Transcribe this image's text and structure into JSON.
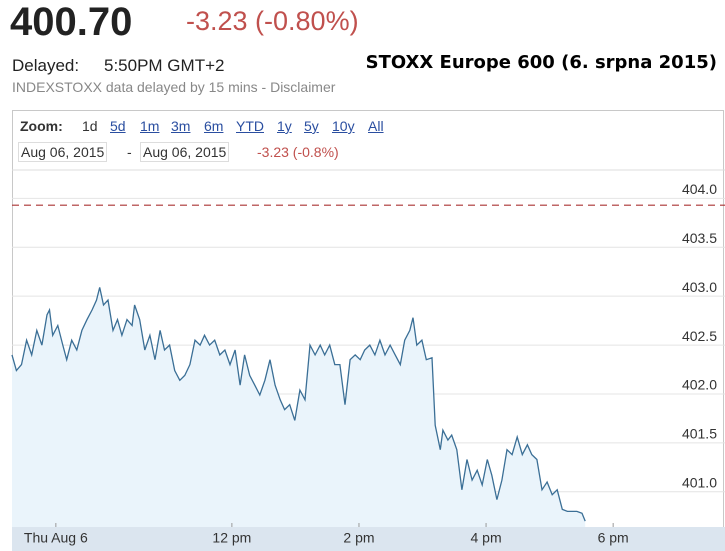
{
  "header": {
    "price": "400.70",
    "change": "-3.23 (-0.80%)",
    "delayed_label": "Delayed:",
    "time": "5:50PM GMT+2",
    "title": "STOXX Europe 600 (6. srpna 2015)",
    "disclaimer": "INDEXSTOXX data delayed by 15 mins - Disclaimer"
  },
  "zoom": {
    "label": "Zoom:",
    "options": [
      "1d",
      "5d",
      "1m",
      "3m",
      "6m",
      "YTD",
      "1y",
      "5y",
      "10y",
      "All"
    ]
  },
  "range": {
    "from": "Aug 06, 2015",
    "separator": "-",
    "to": "Aug 06, 2015",
    "change": "-3.23 (-0.8%)"
  },
  "chart_data": {
    "type": "line",
    "x": [
      8.54,
      8.61,
      8.69,
      8.77,
      8.85,
      8.93,
      9.01,
      9.09,
      9.13,
      9.18,
      9.26,
      9.34,
      9.4,
      9.48,
      9.56,
      9.64,
      9.72,
      9.8,
      9.87,
      9.92,
      9.98,
      10.05,
      10.13,
      10.2,
      10.27,
      10.35,
      10.43,
      10.47,
      10.55,
      10.63,
      10.71,
      10.79,
      10.87,
      10.94,
      11.02,
      11.1,
      11.18,
      11.26,
      11.34,
      11.42,
      11.5,
      11.57,
      11.65,
      11.73,
      11.81,
      11.89,
      11.97,
      12.05,
      12.13,
      12.2,
      12.28,
      12.36,
      12.44,
      12.52,
      12.6,
      12.68,
      12.76,
      12.83,
      12.91,
      12.99,
      13.07,
      13.15,
      13.23,
      13.31,
      13.39,
      13.46,
      13.54,
      13.62,
      13.7,
      13.78,
      13.86,
      13.94,
      14.02,
      14.09,
      14.17,
      14.25,
      14.33,
      14.41,
      14.49,
      14.57,
      14.65,
      14.72,
      14.8,
      14.85,
      14.91,
      14.99,
      15.06,
      15.15,
      15.2,
      15.28,
      15.32,
      15.4,
      15.46,
      15.54,
      15.62,
      15.7,
      15.78,
      15.86,
      15.94,
      16.02,
      16.09,
      16.17,
      16.25,
      16.33,
      16.41,
      16.49,
      16.57,
      16.65,
      16.72,
      16.8,
      16.88,
      16.96,
      17.04,
      17.12,
      17.2,
      17.28,
      17.35,
      17.43,
      17.51,
      17.56
    ],
    "series": [
      {
        "color": "#3b6f96",
        "values": [
          402.4,
          402.24,
          402.3,
          402.55,
          402.4,
          402.65,
          402.5,
          402.81,
          402.86,
          402.6,
          402.7,
          402.5,
          402.35,
          402.55,
          402.45,
          402.65,
          402.76,
          402.86,
          402.96,
          403.09,
          402.91,
          402.96,
          402.65,
          402.76,
          402.6,
          402.76,
          402.7,
          402.91,
          402.76,
          402.45,
          402.6,
          402.35,
          402.65,
          402.45,
          402.5,
          402.24,
          402.14,
          402.19,
          402.3,
          402.55,
          402.5,
          402.6,
          402.5,
          402.55,
          402.4,
          402.45,
          402.3,
          402.45,
          402.09,
          402.4,
          402.19,
          402.09,
          401.99,
          402.14,
          402.35,
          402.09,
          401.94,
          401.84,
          401.89,
          401.73,
          402.04,
          401.94,
          402.5,
          402.4,
          402.5,
          402.4,
          402.5,
          402.3,
          402.3,
          401.89,
          402.35,
          402.4,
          402.35,
          402.45,
          402.5,
          402.4,
          402.55,
          402.4,
          402.5,
          402.4,
          402.3,
          402.55,
          402.65,
          402.78,
          402.5,
          402.55,
          402.35,
          402.37,
          401.68,
          401.43,
          401.63,
          401.53,
          401.58,
          401.43,
          401.02,
          401.33,
          401.12,
          401.22,
          401.07,
          401.33,
          401.17,
          400.92,
          401.12,
          401.43,
          401.38,
          401.56,
          401.38,
          401.48,
          401.38,
          401.33,
          401.02,
          401.1,
          400.97,
          401.02,
          400.82,
          400.8,
          400.8,
          400.8,
          400.78,
          400.7
        ]
      }
    ],
    "reference_line": 403.93,
    "xlim": [
      8.54,
      19.76
    ],
    "ylim": [
      400.64,
      404.29
    ],
    "xticks": [
      {
        "value": 9.23,
        "label": "Thu Aug 6"
      },
      {
        "value": 12,
        "label": "12 pm"
      },
      {
        "value": 14,
        "label": "2 pm"
      },
      {
        "value": 16,
        "label": "4 pm"
      },
      {
        "value": 18,
        "label": "6 pm"
      }
    ],
    "yticks": [
      {
        "value": 401,
        "label": "401.0"
      },
      401.5,
      {
        "value": 402,
        "label": "402.0"
      },
      402.5,
      {
        "value": 403,
        "label": "403.0"
      },
      403.5,
      {
        "value": 404,
        "label": "404.0"
      }
    ],
    "grid": true
  }
}
